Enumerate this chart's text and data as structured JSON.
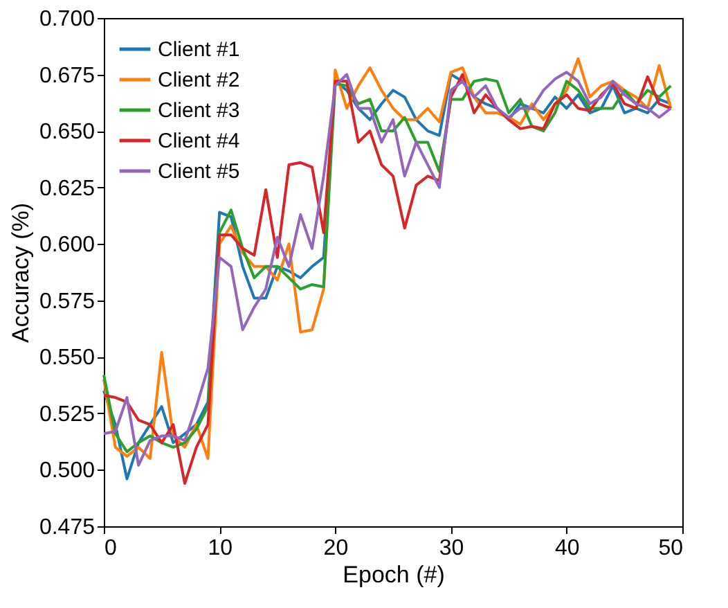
{
  "chart_data": {
    "type": "line",
    "xlabel": "Epoch (#)",
    "ylabel": "Accuracy (%)",
    "x": [
      0,
      1,
      2,
      3,
      4,
      5,
      6,
      7,
      8,
      9,
      10,
      11,
      12,
      13,
      14,
      15,
      16,
      17,
      18,
      19,
      20,
      21,
      22,
      23,
      24,
      25,
      26,
      27,
      28,
      29,
      30,
      31,
      32,
      33,
      34,
      35,
      36,
      37,
      38,
      39,
      40,
      41,
      42,
      43,
      44,
      45,
      46,
      47,
      48,
      49
    ],
    "series": [
      {
        "name": "Client #1",
        "color": "#1f77b4",
        "values": [
          0.535,
          0.52,
          0.496,
          0.512,
          0.52,
          0.528,
          0.512,
          0.516,
          0.52,
          0.53,
          0.614,
          0.612,
          0.59,
          0.576,
          0.576,
          0.59,
          0.588,
          0.585,
          0.59,
          0.594,
          0.672,
          0.668,
          0.66,
          0.655,
          0.662,
          0.668,
          0.665,
          0.655,
          0.65,
          0.648,
          0.675,
          0.672,
          0.665,
          0.662,
          0.66,
          0.655,
          0.662,
          0.66,
          0.658,
          0.665,
          0.66,
          0.666,
          0.658,
          0.66,
          0.67,
          0.658,
          0.66,
          0.658,
          0.664,
          0.662
        ]
      },
      {
        "name": "Client #2",
        "color": "#ff7f0e",
        "values": [
          0.54,
          0.51,
          0.506,
          0.51,
          0.505,
          0.552,
          0.515,
          0.51,
          0.52,
          0.505,
          0.6,
          0.608,
          0.596,
          0.59,
          0.59,
          0.584,
          0.6,
          0.561,
          0.562,
          0.58,
          0.677,
          0.66,
          0.67,
          0.678,
          0.668,
          0.66,
          0.655,
          0.655,
          0.66,
          0.654,
          0.676,
          0.678,
          0.665,
          0.658,
          0.658,
          0.656,
          0.653,
          0.662,
          0.655,
          0.662,
          0.668,
          0.682,
          0.665,
          0.67,
          0.672,
          0.668,
          0.665,
          0.66,
          0.679,
          0.66
        ]
      },
      {
        "name": "Client #3",
        "color": "#2ca02c",
        "values": [
          0.542,
          0.516,
          0.508,
          0.512,
          0.515,
          0.512,
          0.51,
          0.512,
          0.518,
          0.528,
          0.605,
          0.615,
          0.598,
          0.585,
          0.59,
          0.59,
          0.585,
          0.58,
          0.582,
          0.581,
          0.671,
          0.67,
          0.662,
          0.664,
          0.65,
          0.65,
          0.656,
          0.645,
          0.645,
          0.632,
          0.664,
          0.664,
          0.672,
          0.673,
          0.672,
          0.658,
          0.664,
          0.652,
          0.65,
          0.658,
          0.672,
          0.668,
          0.66,
          0.66,
          0.66,
          0.668,
          0.662,
          0.668,
          0.665,
          0.67
        ]
      },
      {
        "name": "Client #4",
        "color": "#d62728",
        "values": [
          0.533,
          0.532,
          0.53,
          0.522,
          0.52,
          0.512,
          0.52,
          0.494,
          0.51,
          0.52,
          0.604,
          0.604,
          0.598,
          0.595,
          0.624,
          0.594,
          0.635,
          0.636,
          0.634,
          0.605,
          0.672,
          0.672,
          0.645,
          0.65,
          0.635,
          0.63,
          0.607,
          0.626,
          0.63,
          0.628,
          0.665,
          0.675,
          0.658,
          0.666,
          0.66,
          0.655,
          0.651,
          0.652,
          0.651,
          0.662,
          0.666,
          0.66,
          0.659,
          0.666,
          0.671,
          0.662,
          0.66,
          0.674,
          0.662,
          0.66
        ]
      },
      {
        "name": "Client #5",
        "color": "#9467bd",
        "values": [
          0.516,
          0.517,
          0.532,
          0.502,
          0.513,
          0.515,
          0.515,
          0.513,
          0.528,
          0.545,
          0.594,
          0.59,
          0.562,
          0.572,
          0.58,
          0.603,
          0.59,
          0.613,
          0.598,
          0.63,
          0.67,
          0.675,
          0.66,
          0.66,
          0.645,
          0.655,
          0.63,
          0.645,
          0.635,
          0.625,
          0.668,
          0.672,
          0.665,
          0.67,
          0.66,
          0.656,
          0.66,
          0.66,
          0.668,
          0.673,
          0.676,
          0.672,
          0.662,
          0.665,
          0.672,
          0.666,
          0.662,
          0.66,
          0.656,
          0.66
        ]
      }
    ],
    "xlim": [
      0,
      50
    ],
    "xticks": [
      0,
      10,
      20,
      30,
      40,
      50
    ],
    "ylim": [
      0.475,
      0.7
    ],
    "yticks": [
      {
        "value": 0.475,
        "label": "0.475"
      },
      {
        "value": 0.5,
        "label": "0.500"
      },
      {
        "value": 0.525,
        "label": "0.525"
      },
      {
        "value": 0.55,
        "label": "0.550"
      },
      {
        "value": 0.575,
        "label": "0.575"
      },
      {
        "value": 0.6,
        "label": "0.600"
      },
      {
        "value": 0.625,
        "label": "0.625"
      },
      {
        "value": 0.65,
        "label": "0.650"
      },
      {
        "value": 0.675,
        "label": "0.675"
      },
      {
        "value": 0.7,
        "label": "0.700"
      }
    ],
    "legend": "top left",
    "grid": false,
    "marker": "none",
    "line_style": "solid"
  }
}
